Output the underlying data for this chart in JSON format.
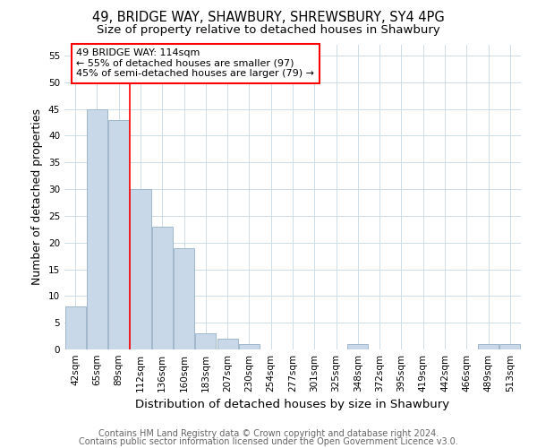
{
  "title": "49, BRIDGE WAY, SHAWBURY, SHREWSBURY, SY4 4PG",
  "subtitle": "Size of property relative to detached houses in Shawbury",
  "xlabel": "Distribution of detached houses by size in Shawbury",
  "ylabel": "Number of detached properties",
  "categories": [
    "42sqm",
    "65sqm",
    "89sqm",
    "112sqm",
    "136sqm",
    "160sqm",
    "183sqm",
    "207sqm",
    "230sqm",
    "254sqm",
    "277sqm",
    "301sqm",
    "325sqm",
    "348sqm",
    "372sqm",
    "395sqm",
    "419sqm",
    "442sqm",
    "466sqm",
    "489sqm",
    "513sqm"
  ],
  "values": [
    8,
    45,
    43,
    30,
    23,
    19,
    3,
    2,
    1,
    0,
    0,
    0,
    0,
    1,
    0,
    0,
    0,
    0,
    0,
    1,
    1
  ],
  "bar_color": "#c8d8e8",
  "bar_edge_color": "#a0b8cc",
  "red_line_x": 2.5,
  "annotation_line1": "49 BRIDGE WAY: 114sqm",
  "annotation_line2": "← 55% of detached houses are smaller (97)",
  "annotation_line3": "45% of semi-detached houses are larger (79) →",
  "ylim": [
    0,
    57
  ],
  "yticks": [
    0,
    5,
    10,
    15,
    20,
    25,
    30,
    35,
    40,
    45,
    50,
    55
  ],
  "footer1": "Contains HM Land Registry data © Crown copyright and database right 2024.",
  "footer2": "Contains public sector information licensed under the Open Government Licence v3.0.",
  "title_fontsize": 10.5,
  "subtitle_fontsize": 9.5,
  "axis_label_fontsize": 9,
  "tick_fontsize": 7.5,
  "annotation_fontsize": 8,
  "footer_fontsize": 7,
  "background_color": "#ffffff",
  "grid_color": "#ccdde8"
}
